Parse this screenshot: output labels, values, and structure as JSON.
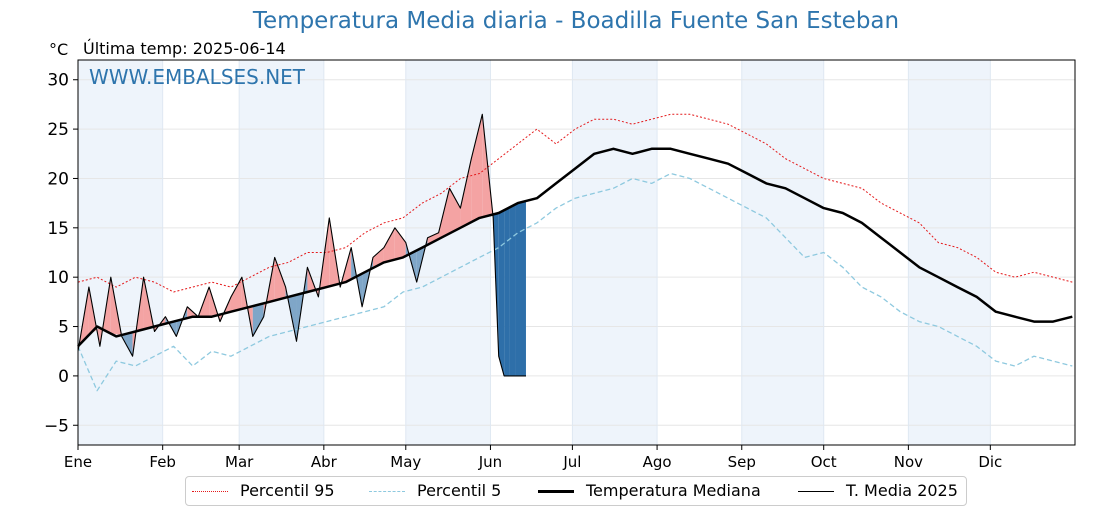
{
  "title": "Temperatura Media diaria - Boadilla Fuente San Esteban",
  "unit_label": "°C",
  "last_temp_label": "Última temp: 2025-06-14",
  "watermark": "WWW.EMBALSES.NET",
  "colors": {
    "p95": "#e41a1c",
    "p5": "#8ec9df",
    "median": "#000000",
    "current": "#000000",
    "above_fill": "#f4a3a3",
    "below_fill": "#7fa6c8",
    "gap_fill": "#2e6fa9",
    "band": "#eef4fb",
    "title": "#2e75ad"
  },
  "legend": {
    "p95": "Percentil 95",
    "p5": "Percentil 5",
    "median": "Temperatura Mediana",
    "current": "T. Media 2025"
  },
  "chart_data": {
    "type": "line",
    "title": "Temperatura Media diaria - Boadilla Fuente San Esteban",
    "xlabel": "",
    "ylabel": "°C",
    "xlim": [
      1,
      366
    ],
    "ylim": [
      -7,
      32
    ],
    "yticks": [
      -5,
      0,
      5,
      10,
      15,
      20,
      25,
      30
    ],
    "months": [
      "Ene",
      "Feb",
      "Mar",
      "Abr",
      "May",
      "Jun",
      "Jul",
      "Ago",
      "Sep",
      "Oct",
      "Nov",
      "Dic"
    ],
    "month_start_days": [
      1,
      32,
      60,
      91,
      121,
      152,
      182,
      213,
      244,
      274,
      305,
      335
    ],
    "grid": true,
    "legend_position": "bottom",
    "series": [
      {
        "name": "Percentil 95",
        "style": "dotted-red",
        "x": [
          1,
          8,
          15,
          22,
          29,
          36,
          43,
          50,
          57,
          64,
          71,
          78,
          85,
          92,
          99,
          106,
          113,
          120,
          127,
          134,
          141,
          148,
          155,
          162,
          169,
          176,
          183,
          190,
          197,
          204,
          211,
          218,
          225,
          232,
          239,
          246,
          253,
          260,
          267,
          274,
          281,
          288,
          295,
          302,
          309,
          316,
          323,
          330,
          337,
          344,
          351,
          358,
          365
        ],
        "y": [
          9.5,
          10.0,
          9.0,
          10.0,
          9.5,
          8.5,
          9.0,
          9.5,
          9.0,
          10.0,
          11.0,
          11.5,
          12.5,
          12.5,
          13.0,
          14.5,
          15.5,
          16.0,
          17.5,
          18.5,
          20.0,
          20.5,
          22.0,
          23.5,
          25.0,
          23.5,
          25.0,
          26.0,
          26.0,
          25.5,
          26.0,
          26.5,
          26.5,
          26.0,
          25.5,
          24.5,
          23.5,
          22.0,
          21.0,
          20.0,
          19.5,
          19.0,
          17.5,
          16.5,
          15.5,
          13.5,
          13.0,
          12.0,
          10.5,
          10.0,
          10.5,
          10.0,
          9.5
        ]
      },
      {
        "name": "Percentil 5",
        "style": "dashed-lightblue",
        "x": [
          1,
          8,
          15,
          22,
          29,
          36,
          43,
          50,
          57,
          64,
          71,
          78,
          85,
          92,
          99,
          106,
          113,
          120,
          127,
          134,
          141,
          148,
          155,
          162,
          169,
          176,
          183,
          190,
          197,
          204,
          211,
          218,
          225,
          232,
          239,
          246,
          253,
          260,
          267,
          274,
          281,
          288,
          295,
          302,
          309,
          316,
          323,
          330,
          337,
          344,
          351,
          358,
          365
        ],
        "y": [
          3.0,
          -1.5,
          1.5,
          1.0,
          2.0,
          3.0,
          1.0,
          2.5,
          2.0,
          3.0,
          4.0,
          4.5,
          5.0,
          5.5,
          6.0,
          6.5,
          7.0,
          8.5,
          9.0,
          10.0,
          11.0,
          12.0,
          13.0,
          14.5,
          15.5,
          17.0,
          18.0,
          18.5,
          19.0,
          20.0,
          19.5,
          20.5,
          20.0,
          19.0,
          18.0,
          17.0,
          16.0,
          14.0,
          12.0,
          12.5,
          11.0,
          9.0,
          8.0,
          6.5,
          5.5,
          5.0,
          4.0,
          3.0,
          1.5,
          1.0,
          2.0,
          1.5,
          1.0
        ]
      },
      {
        "name": "Temperatura Mediana",
        "style": "solid-thick",
        "x": [
          1,
          8,
          15,
          22,
          29,
          36,
          43,
          50,
          57,
          64,
          71,
          78,
          85,
          92,
          99,
          106,
          113,
          120,
          127,
          134,
          141,
          148,
          155,
          162,
          169,
          176,
          183,
          190,
          197,
          204,
          211,
          218,
          225,
          232,
          239,
          246,
          253,
          260,
          267,
          274,
          281,
          288,
          295,
          302,
          309,
          316,
          323,
          330,
          337,
          344,
          351,
          358,
          365
        ],
        "y": [
          3.0,
          5.0,
          4.0,
          4.5,
          5.0,
          5.5,
          6.0,
          6.0,
          6.5,
          7.0,
          7.5,
          8.0,
          8.5,
          9.0,
          9.5,
          10.5,
          11.5,
          12.0,
          13.0,
          14.0,
          15.0,
          16.0,
          16.5,
          17.5,
          18.0,
          19.5,
          21.0,
          22.5,
          23.0,
          22.5,
          23.0,
          23.0,
          22.5,
          22.0,
          21.5,
          20.5,
          19.5,
          19.0,
          18.0,
          17.0,
          16.5,
          15.5,
          14.0,
          12.5,
          11.0,
          10.0,
          9.0,
          8.0,
          6.5,
          6.0,
          5.5,
          5.5,
          6.0
        ]
      },
      {
        "name": "T. Media 2025",
        "style": "solid-thin",
        "x": [
          1,
          5,
          9,
          13,
          17,
          21,
          25,
          29,
          33,
          37,
          41,
          45,
          49,
          53,
          57,
          61,
          65,
          69,
          73,
          77,
          81,
          85,
          89,
          93,
          97,
          101,
          105,
          109,
          113,
          117,
          121,
          125,
          129,
          133,
          137,
          141,
          145,
          149,
          153,
          155,
          157,
          159,
          161,
          163,
          165
        ],
        "y": [
          2.5,
          9.0,
          3.0,
          10.0,
          4.0,
          2.0,
          10.0,
          4.5,
          6.0,
          4.0,
          7.0,
          6.0,
          9.0,
          5.5,
          8.0,
          10.0,
          4.0,
          6.0,
          12.0,
          9.0,
          3.5,
          11.0,
          8.0,
          16.0,
          9.0,
          13.0,
          7.0,
          12.0,
          13.0,
          15.0,
          13.5,
          9.5,
          14.0,
          14.5,
          19.0,
          17.0,
          22.0,
          26.5,
          16.0,
          2.0,
          0.0,
          0.0,
          0.0,
          0.0,
          0.0
        ]
      }
    ]
  }
}
